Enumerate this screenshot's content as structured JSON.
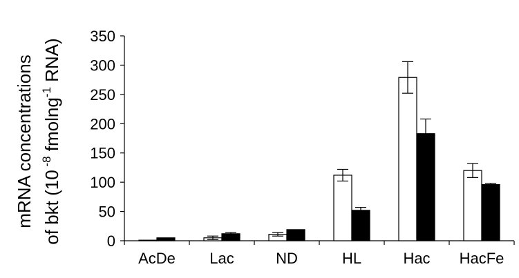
{
  "chart_data": {
    "type": "bar",
    "title": "",
    "xlabel": "",
    "ylabel_line1": "mRNA concentrations",
    "ylabel_line2": {
      "prefix": "of bkt (10",
      "exp1": " -8",
      "middle": " fmolng",
      "exp2": "-1",
      "suffix": " RNA)"
    },
    "ylim": [
      0,
      350
    ],
    "yticks": [
      0,
      50,
      100,
      150,
      200,
      250,
      300,
      350
    ],
    "categories": [
      "AcDe",
      "Lac",
      "ND",
      "HL",
      "Hac",
      "HacFe"
    ],
    "series": [
      {
        "fill": "#ffffff",
        "values": [
          1,
          5,
          11,
          112,
          279,
          120
        ],
        "errors": [
          0,
          3,
          3,
          10,
          27,
          12
        ]
      },
      {
        "fill": "#000000",
        "values": [
          5,
          12,
          19,
          52,
          183,
          96
        ],
        "errors": [
          0,
          2,
          0,
          5,
          25,
          2
        ]
      }
    ],
    "grid": false,
    "legend": "none",
    "colors": {
      "axis": "#000000",
      "text": "#000000"
    }
  }
}
